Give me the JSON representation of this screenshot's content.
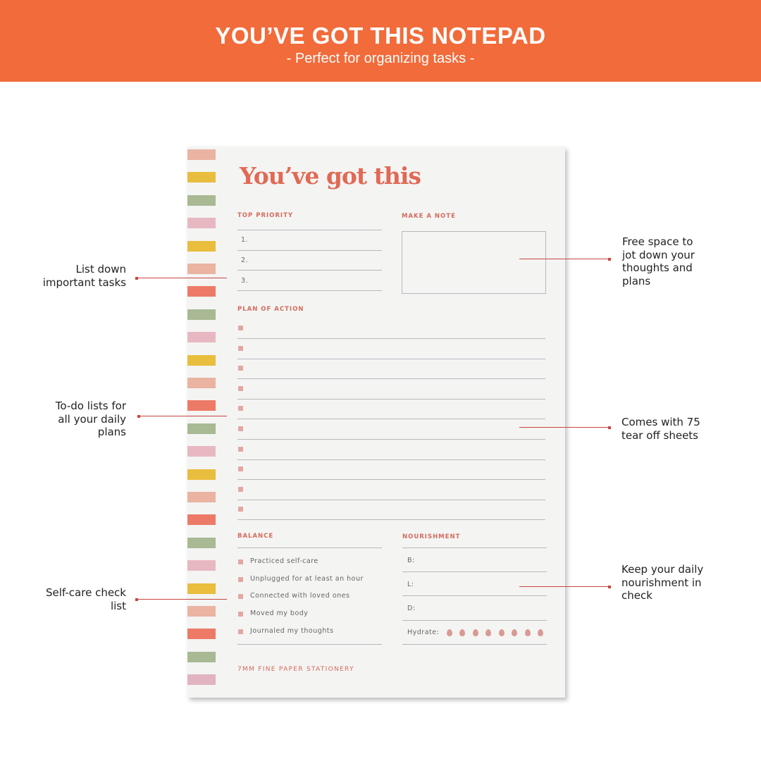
{
  "banner": {
    "title": "YOU’VE GOT THIS NOTEPAD",
    "subtitle": "-  Perfect for organizing tasks  -",
    "color": "#f26b3a"
  },
  "notepad": {
    "title": "You’ve got this",
    "top_priority": {
      "heading": "TOP PRIORITY",
      "items": [
        "1.",
        "2.",
        "3."
      ]
    },
    "make_a_note": {
      "heading": "MAKE A NOTE"
    },
    "plan_of_action": {
      "heading": "PLAN OF ACTION",
      "rows": 10
    },
    "balance": {
      "heading": "BALANCE",
      "items": [
        "Practiced self-care",
        "Unplugged for at least an hour",
        "Connected with loved ones",
        "Moved my body",
        "Journaled my thoughts"
      ]
    },
    "nourishment": {
      "heading": "NOURISHMENT",
      "meals": [
        "B:",
        "L:",
        "D:"
      ],
      "hydrate_label": "Hydrate:",
      "water_drops": 8
    },
    "footer": "7MM FINE PAPER STATIONERY",
    "stripe_colors": [
      "#eab3a2",
      "#e9bd3d",
      "#a8b994",
      "#e8b8c2",
      "#e9bd3d",
      "#eab3a2",
      "#ec7a67",
      "#a8b994",
      "#e8b8c2",
      "#e9bd3d",
      "#eab3a2",
      "#ec7a67",
      "#a8b994",
      "#e8b8c2",
      "#e9bd3d",
      "#eab3a2",
      "#ec7a67",
      "#a8b994",
      "#e8b8c2",
      "#e9bd3d",
      "#eab3a2",
      "#ec7a67",
      "#a8b994",
      "#e2b3c0"
    ]
  },
  "annotations": {
    "list_down": "List down important tasks",
    "todo": "To-do lists for all your daily plans",
    "selfcare": "Self-care check list",
    "free_space": "Free space to jot down your thoughts and plans",
    "sheets": "Comes with 75 tear off sheets",
    "nourish": "Keep your daily nourishment in check"
  }
}
